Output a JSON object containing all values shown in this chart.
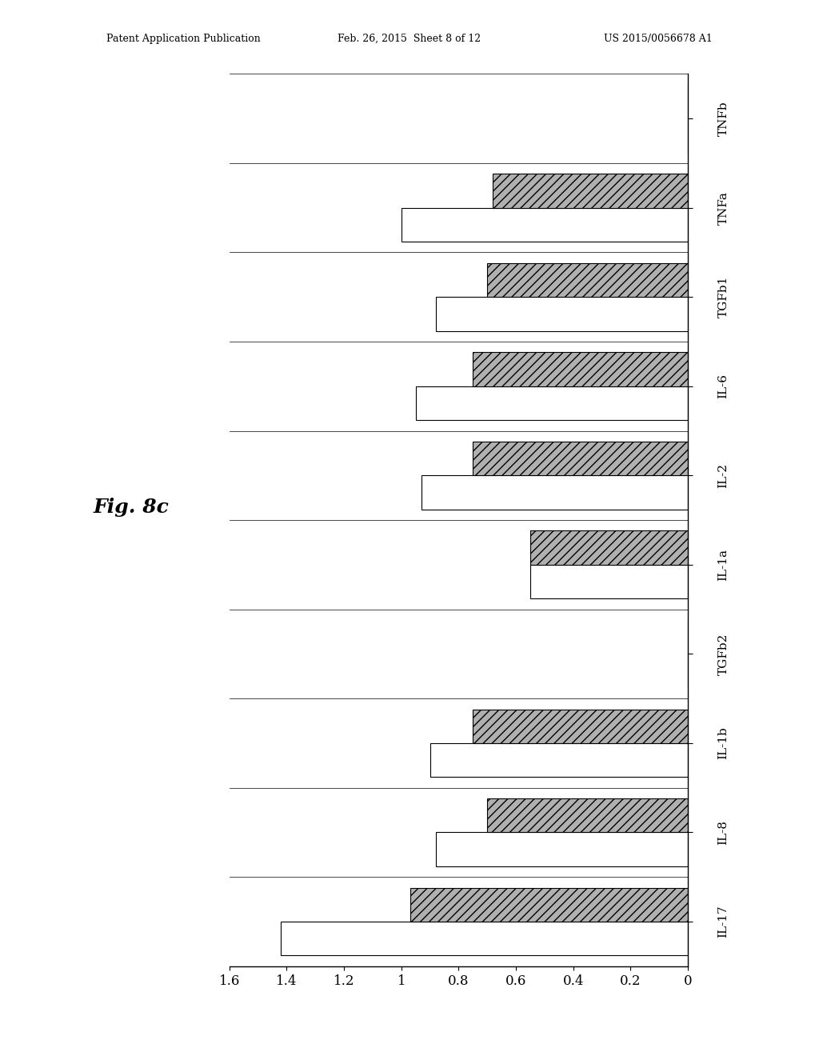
{
  "categories": [
    "TNFb",
    "TNFa",
    "TGFb1",
    "IL-6",
    "IL-2",
    "IL-1a",
    "TGFb2",
    "IL-1b",
    "IL-8",
    "IL-17"
  ],
  "white_values": [
    0.0,
    1.0,
    0.88,
    0.95,
    0.93,
    0.55,
    0.0,
    0.9,
    0.88,
    1.42
  ],
  "gray_values": [
    0.0,
    0.68,
    0.7,
    0.75,
    0.75,
    0.55,
    0.0,
    0.75,
    0.7,
    0.97
  ],
  "xlim_left": 1.6,
  "xlim_right": 0.0,
  "xticks": [
    1.6,
    1.4,
    1.2,
    1.0,
    0.8,
    0.6,
    0.4,
    0.2,
    0.0
  ],
  "xtick_labels": [
    "1.6",
    "1.4",
    "1.2",
    "1",
    "0.8",
    "0.6",
    "0.4",
    "0.2",
    "0"
  ],
  "bar_white_color": "#ffffff",
  "bar_gray_color": "#b0b0b0",
  "bar_edge_color": "#000000",
  "hatch_gray": "///",
  "background_color": "#ffffff",
  "fig_label": "Fig. 8c",
  "header_left": "Patent Application Publication",
  "header_mid": "Feb. 26, 2015  Sheet 8 of 12",
  "header_right": "US 2015/0056678 A1"
}
